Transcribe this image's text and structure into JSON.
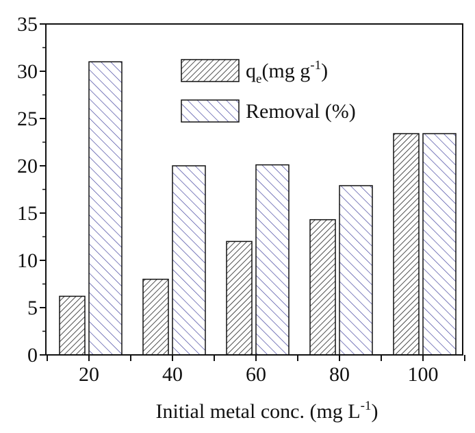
{
  "chart_data": {
    "type": "bar",
    "title": "",
    "xlabel": "Initial metal conc. (mg L",
    "xlabel_sup": "-1",
    "xlabel_end": ")",
    "ylabel": "",
    "categories": [
      "20",
      "40",
      "60",
      "80",
      "100"
    ],
    "ylim": [
      0,
      35
    ],
    "yticks": [
      "0",
      "5",
      "10",
      "15",
      "20",
      "25",
      "30",
      "35"
    ],
    "grid": false,
    "legend_position": "top-center",
    "series": [
      {
        "name": "qe(mg g-1)",
        "legend_main": "q",
        "legend_sub": "e",
        "legend_rest": "(mg g",
        "legend_sup": "-1",
        "legend_end": ")",
        "values": [
          6.2,
          8.0,
          12.0,
          14.3,
          23.4
        ],
        "color": "#222222",
        "hatch": "forward"
      },
      {
        "name": "Removal (%)",
        "legend_main": "Removal (%)",
        "values": [
          31.0,
          20.0,
          20.1,
          17.9,
          23.4
        ],
        "color": "#3a3a9a",
        "hatch": "backward"
      }
    ]
  }
}
